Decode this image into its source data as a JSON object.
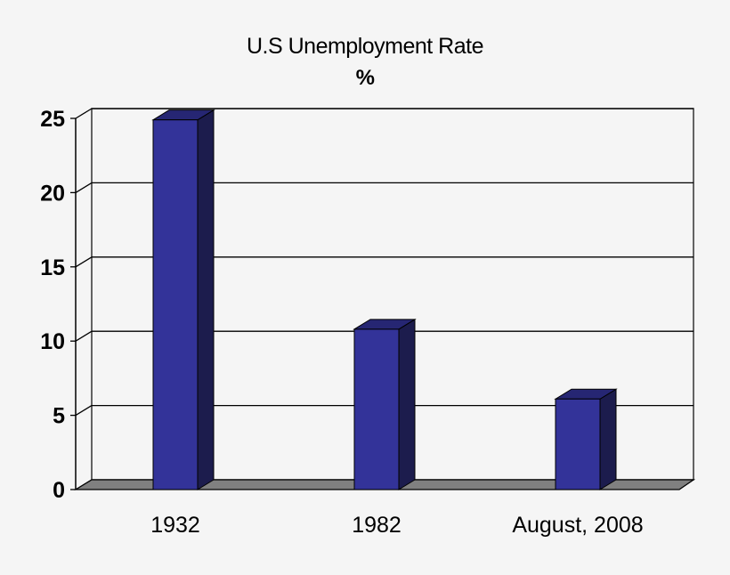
{
  "chart": {
    "title_line1": "U.S Unemployment Rate",
    "title_line2": "%"
  },
  "colors": {
    "background": "#f5f5f5",
    "bar_front": "#333399",
    "bar_top": "#262673",
    "bar_side": "#1c1c4d",
    "floor": "#808080",
    "gridline": "#000000"
  },
  "chart_data": {
    "type": "bar",
    "title": "U.S Unemployment Rate %",
    "categories": [
      "1932",
      "1982",
      "August, 2008"
    ],
    "values": [
      24.9,
      10.8,
      6.1
    ],
    "xlabel": "",
    "ylabel": "%",
    "ylim": [
      0,
      25
    ],
    "yticks": [
      0,
      5,
      10,
      15,
      20,
      25
    ],
    "grid": true,
    "legend": null,
    "style": "3d-column"
  }
}
